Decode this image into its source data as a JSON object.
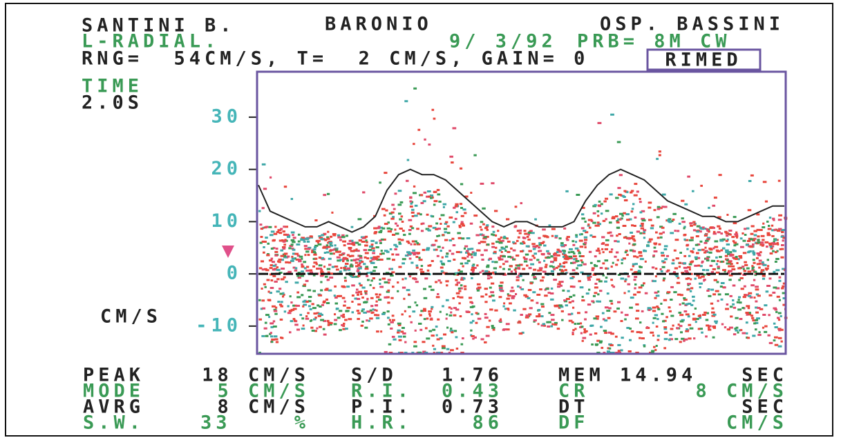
{
  "header": {
    "patient": "SANTINI B.",
    "doctor": "BARONIO",
    "hospital": "OSP. BASSINI",
    "vessel": "L-RADIAL.",
    "date": "9/ 3/92",
    "probe": "PRB= 8M CW",
    "settings": "RNG=  54CM/S, T=  2 CM/S, GAIN= 0",
    "brand": "RIMED"
  },
  "time_label": "TIME",
  "time_value": "2.0S",
  "unit_label": "CM/S",
  "chart_data": {
    "type": "line",
    "categories": [
      null,
      null,
      null,
      null,
      null,
      null,
      null,
      null,
      null,
      null,
      null,
      null,
      null,
      null,
      null,
      null,
      null,
      null,
      null,
      null,
      null,
      null,
      null,
      null,
      null,
      null,
      null,
      null,
      null,
      null,
      null,
      null,
      null,
      null,
      null,
      null,
      null,
      null,
      null,
      null,
      null,
      null,
      null,
      null,
      null,
      null
    ],
    "values": [
      17,
      12,
      11,
      10,
      9,
      9,
      10,
      9,
      8,
      9,
      11,
      16,
      19,
      20,
      19,
      19,
      18,
      16,
      14,
      12,
      10,
      9,
      10,
      10,
      9,
      9,
      9,
      10,
      14,
      17,
      19,
      20,
      19,
      18,
      16,
      14,
      13,
      12,
      11,
      11,
      10,
      10,
      11,
      12,
      13,
      13
    ],
    "color": "#222222",
    "ylim": [
      -15.3,
      38.7
    ],
    "yticks": [
      30,
      20,
      10,
      0,
      -10
    ]
  },
  "readouts": {
    "rows": [
      [
        "PEAK",
        "18 CM/S",
        "S/D",
        "1.76",
        "MEM 14.94",
        "SEC"
      ],
      [
        "MODE",
        "5 CM/S",
        "R.I.",
        "0.43",
        "CR",
        "8 CM/S"
      ],
      [
        "AVRG",
        "8 CM/S",
        "P.I.",
        "0.73",
        "DT",
        "SEC"
      ],
      [
        "S.W.",
        "33",
        "%",
        "H.R.",
        "86",
        "DF",
        "CM/S"
      ]
    ]
  }
}
